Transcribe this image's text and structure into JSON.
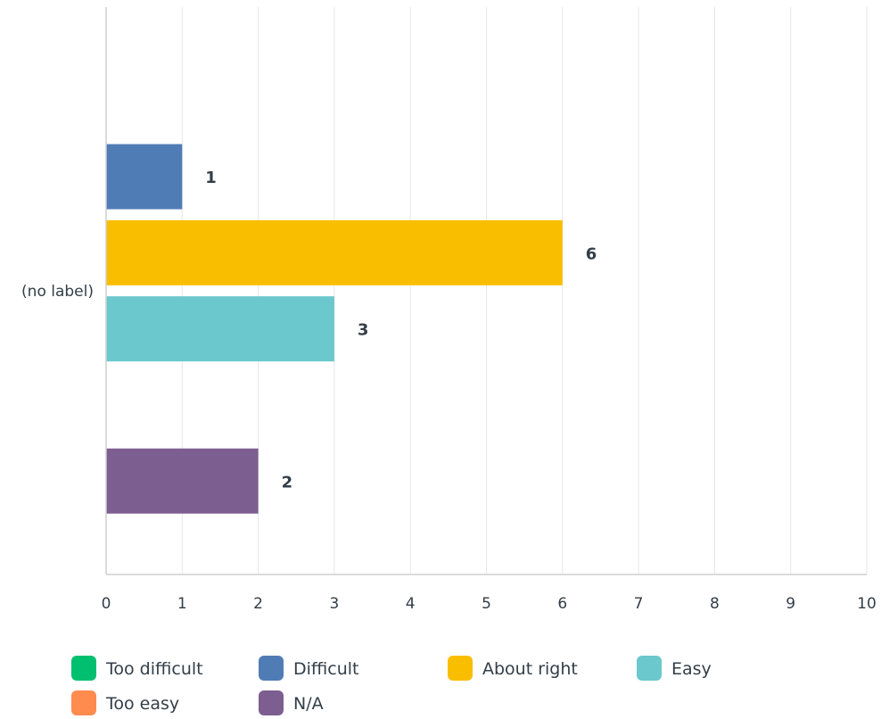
{
  "chart_data": {
    "type": "bar",
    "orientation": "horizontal",
    "categories": [
      "(no label)"
    ],
    "series": [
      {
        "name": "Too difficult",
        "values": [
          0
        ],
        "color": "#00bf6f"
      },
      {
        "name": "Difficult",
        "values": [
          1
        ],
        "color": "#507cb6"
      },
      {
        "name": "About right",
        "values": [
          6
        ],
        "color": "#f9be00"
      },
      {
        "name": "Easy",
        "values": [
          3
        ],
        "color": "#6bc8cd"
      },
      {
        "name": "Too easy",
        "values": [
          0
        ],
        "color": "#ff8b4f"
      },
      {
        "name": "N/A",
        "values": [
          2
        ],
        "color": "#7d5e90"
      }
    ],
    "xlim": [
      0,
      10
    ],
    "xticks": [
      0,
      1,
      2,
      3,
      4,
      5,
      6,
      7,
      8,
      9,
      10
    ],
    "title": "",
    "xlabel": "",
    "ylabel": "",
    "grid": true,
    "legend": "bottom"
  }
}
